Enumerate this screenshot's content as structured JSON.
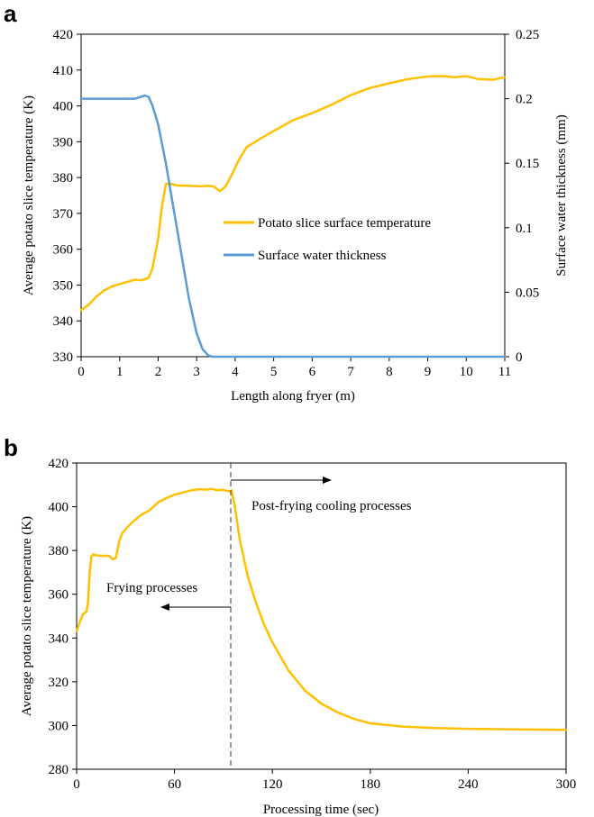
{
  "colors": {
    "temperature": "#FFC000",
    "water": "#5B9BD5",
    "axis": "#000000",
    "divider": "#555555"
  },
  "panel_a": {
    "letter": "a",
    "legend": {
      "temperature": "Potato slice surface temperature",
      "water": "Surface water thickness"
    }
  },
  "panel_b": {
    "letter": "b",
    "annotations": {
      "frying": "Frying processes",
      "cooling": "Post-frying cooling processes"
    }
  },
  "chart_data": [
    {
      "type": "line",
      "xlabel": "Length along fryer (m)",
      "ylabel": "Average potato slice temperature (K)",
      "y2label": "Surface water thickness (mm)",
      "xlim": [
        0,
        11
      ],
      "ylim": [
        330,
        420
      ],
      "y2lim": [
        0,
        0.25
      ],
      "xticks": [
        "0",
        "1",
        "2",
        "3",
        "4",
        "5",
        "6",
        "7",
        "8",
        "9",
        "10",
        "11"
      ],
      "yticks": [
        "330",
        "340",
        "350",
        "360",
        "370",
        "380",
        "390",
        "400",
        "410",
        "420"
      ],
      "y2ticks": [
        "0",
        "0.05",
        "0.1",
        "0.15",
        "0.2",
        "0.25"
      ],
      "series": [
        {
          "name": "Potato slice surface temperature",
          "axis": "left",
          "x": [
            0,
            0.2,
            0.4,
            0.6,
            0.8,
            1.0,
            1.2,
            1.4,
            1.55,
            1.75,
            1.85,
            2.0,
            2.1,
            2.2,
            2.3,
            2.5,
            2.8,
            3.1,
            3.3,
            3.45,
            3.6,
            3.75,
            3.9,
            4.1,
            4.3,
            4.6,
            5.0,
            5.5,
            6.0,
            6.5,
            7.0,
            7.5,
            8.0,
            8.5,
            9.0,
            9.4,
            9.7,
            10.0,
            10.3,
            10.7,
            11.0
          ],
          "y": [
            343,
            344.5,
            346.8,
            348.5,
            349.6,
            350.3,
            350.9,
            351.5,
            351.3,
            352,
            354.5,
            363,
            372,
            378.2,
            378.3,
            377.8,
            377.7,
            377.6,
            377.7,
            377.5,
            376.2,
            377.5,
            380.5,
            385,
            388.5,
            390.5,
            393,
            396,
            398,
            400.3,
            403,
            405,
            406.3,
            407.5,
            408.2,
            408.3,
            408.0,
            408.3,
            407.5,
            407.3,
            408
          ]
        },
        {
          "name": "Surface water thickness",
          "axis": "right",
          "x": [
            0,
            0.5,
            1.0,
            1.4,
            1.55,
            1.65,
            1.75,
            1.85,
            2.0,
            2.2,
            2.4,
            2.6,
            2.8,
            3.0,
            3.15,
            3.3,
            3.4,
            3.6,
            4.0,
            5.0,
            6.0,
            7.0,
            8.0,
            9.0,
            10.0,
            11.0
          ],
          "y": [
            0.2,
            0.2,
            0.2,
            0.2,
            0.2015,
            0.2025,
            0.2015,
            0.195,
            0.18,
            0.15,
            0.115,
            0.08,
            0.045,
            0.018,
            0.006,
            0.001,
            0,
            0,
            0,
            0,
            0,
            0,
            0,
            0,
            0,
            0
          ]
        }
      ]
    },
    {
      "type": "line",
      "xlabel": "Processing time (sec)",
      "ylabel": "Average potato slice temperature (K)",
      "xlim": [
        0,
        300
      ],
      "ylim": [
        280,
        420
      ],
      "xticks": [
        "0",
        "60",
        "120",
        "180",
        "240",
        "300"
      ],
      "yticks": [
        "280",
        "300",
        "320",
        "340",
        "360",
        "380",
        "400",
        "420"
      ],
      "divider_x": 95,
      "series": [
        {
          "name": "Average potato slice temperature",
          "axis": "left",
          "x": [
            0,
            2,
            4,
            6,
            7,
            8,
            9,
            10,
            12,
            15,
            18,
            20,
            22,
            24,
            25,
            26,
            28,
            31,
            35,
            40,
            45,
            50,
            55,
            60,
            65,
            70,
            75,
            80,
            83,
            86,
            89,
            92,
            94,
            95,
            97,
            100,
            105,
            110,
            115,
            120,
            130,
            140,
            150,
            160,
            170,
            180,
            200,
            220,
            240,
            270,
            300
          ],
          "y": [
            343,
            347.5,
            351,
            352,
            356,
            370,
            377,
            378.2,
            377.8,
            377.6,
            377.6,
            377.5,
            376,
            376.5,
            380,
            384,
            388,
            390.5,
            393.5,
            396.5,
            398.5,
            402,
            404,
            405.5,
            406.5,
            407.5,
            408,
            407.8,
            408.2,
            407.5,
            407.8,
            407.3,
            407,
            407.5,
            400,
            385,
            368,
            356,
            346,
            338,
            325,
            316,
            310,
            306,
            303,
            301,
            299.5,
            298.8,
            298.5,
            298.2,
            298
          ]
        }
      ]
    }
  ]
}
